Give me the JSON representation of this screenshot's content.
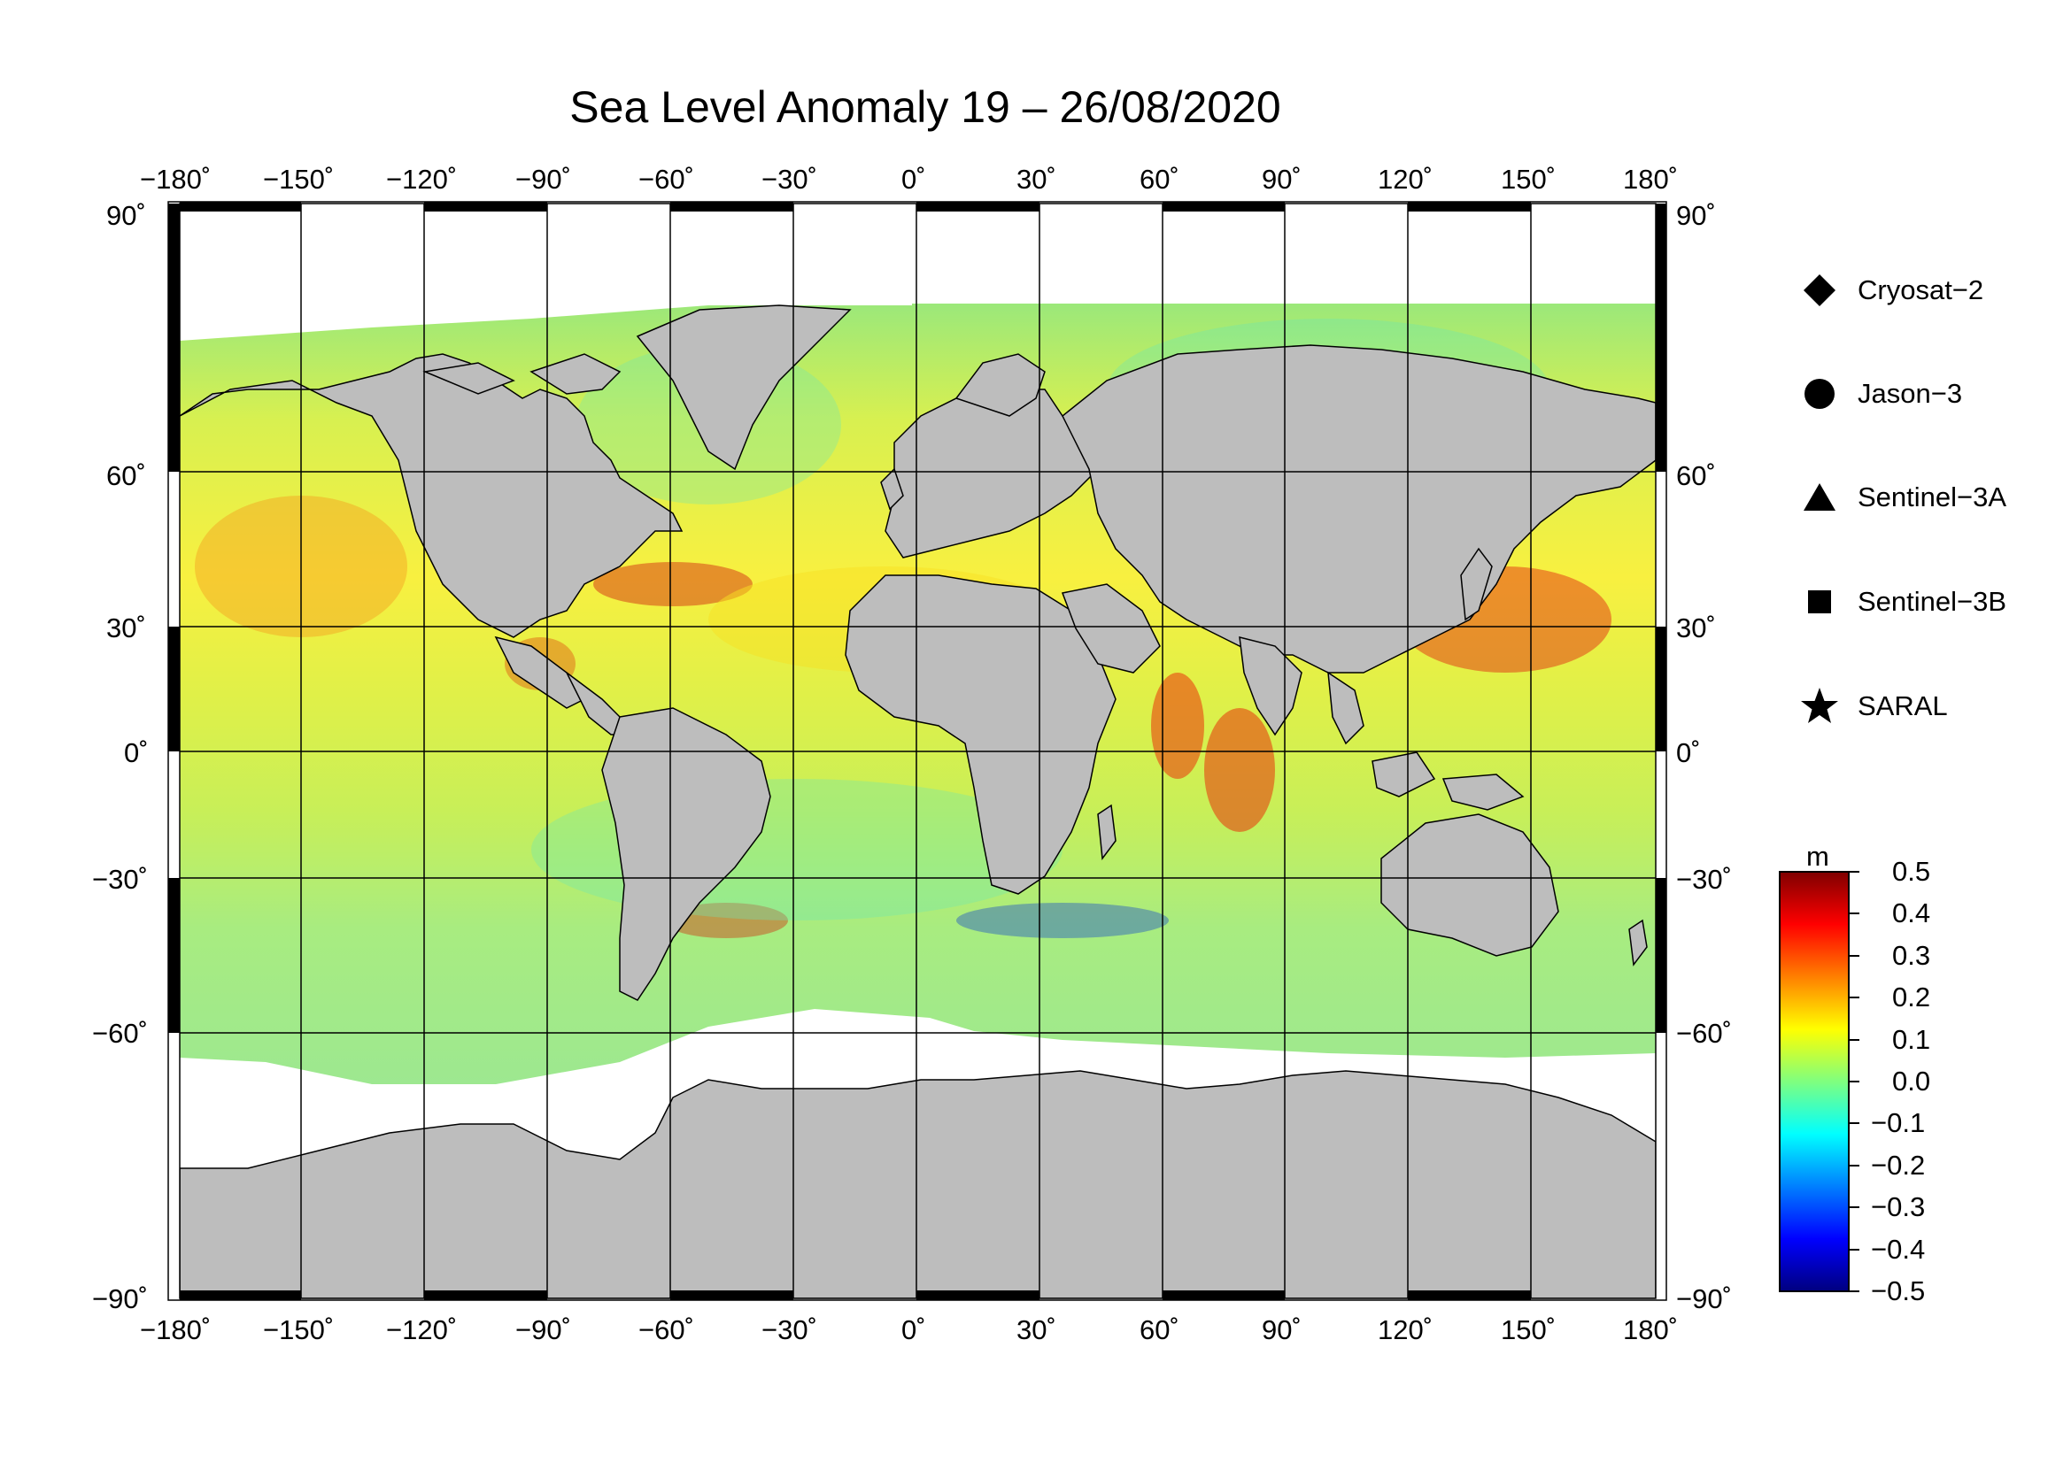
{
  "title": "Sea Level Anomaly 19 – 26/08/2020",
  "longitude_ticks": [
    "−180˚",
    "−150˚",
    "−120˚",
    "−90˚",
    "−60˚",
    "−30˚",
    "0˚",
    "30˚",
    "60˚",
    "90˚",
    "120˚",
    "150˚",
    "180˚"
  ],
  "latitude_ticks_left": [
    "90˚",
    "60˚",
    "30˚",
    "0˚",
    "−30˚",
    "−60˚",
    "−90˚"
  ],
  "latitude_ticks_right": [
    "90˚",
    "60˚",
    "30˚",
    "0˚",
    "−30˚",
    "−60˚",
    "−90˚"
  ],
  "legend": {
    "items": [
      {
        "label": "Cryosat−2",
        "marker": "diamond"
      },
      {
        "label": "Jason−3",
        "marker": "circle"
      },
      {
        "label": "Sentinel−3A",
        "marker": "triangle"
      },
      {
        "label": "Sentinel−3B",
        "marker": "square"
      },
      {
        "label": "SARAL",
        "marker": "star"
      }
    ]
  },
  "colorbar": {
    "unit": "m",
    "labels": [
      "0.5",
      "0.4",
      "0.3",
      "0.2",
      "0.1",
      "0.0",
      "−0.1",
      "−0.2",
      "−0.3",
      "−0.4",
      "−0.5"
    ],
    "min": -0.5,
    "max": 0.5,
    "colors": [
      "#00007f",
      "#0000ff",
      "#007fff",
      "#00ffff",
      "#7fff7f",
      "#ffff00",
      "#ff7f00",
      "#ff0000",
      "#7f0000"
    ]
  },
  "colors": {
    "land": "#bdbdbd",
    "ice": "#ffffff",
    "ocean_base": "#c8f060"
  },
  "map": {
    "projection": "equirectangular",
    "lon_range": [
      -180,
      180
    ],
    "lat_range": [
      -90,
      90
    ]
  }
}
